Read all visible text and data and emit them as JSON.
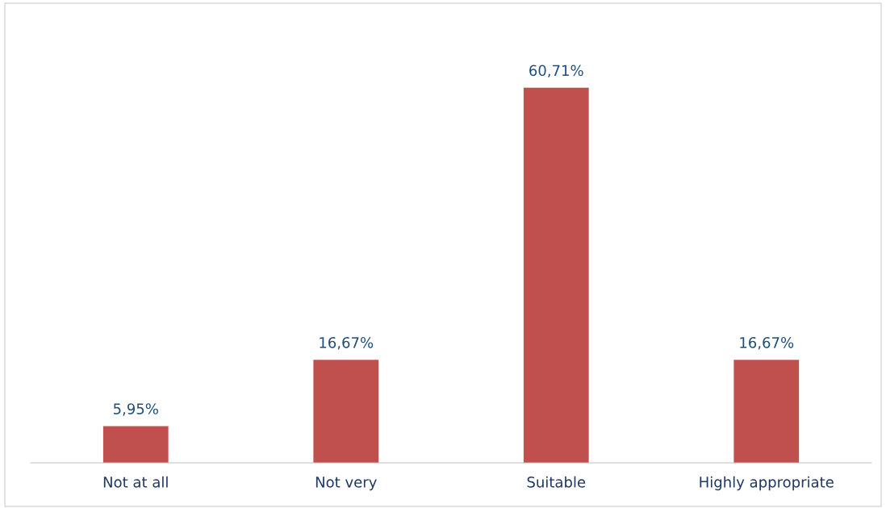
{
  "chart_data": {
    "type": "bar",
    "categories": [
      "Not at all",
      "Not very",
      "Suitable",
      "Highly appropriate"
    ],
    "values": [
      5.95,
      16.67,
      60.71,
      16.67
    ],
    "value_labels": [
      "5,95%",
      "16,67%",
      "60,71%",
      "16,67%"
    ],
    "color": "#c0504d"
  }
}
